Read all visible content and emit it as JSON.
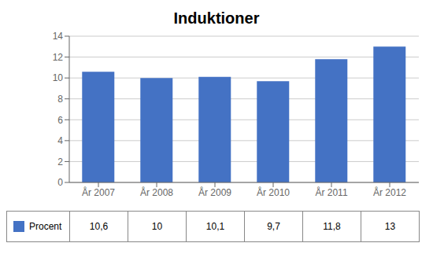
{
  "chart_data": {
    "type": "bar",
    "title": "Induktioner",
    "categories": [
      "År 2007",
      "År 2008",
      "År 2009",
      "År 2010",
      "År 2011",
      "År 2012"
    ],
    "series": [
      {
        "name": "Procent",
        "color": "#4472C4",
        "values": [
          10.6,
          10,
          10.1,
          9.7,
          11.8,
          13
        ],
        "value_labels": [
          "10,6",
          "10",
          "10,1",
          "9,7",
          "11,8",
          "13"
        ]
      }
    ],
    "ylim": [
      0,
      14
    ],
    "yticks": [
      0,
      2,
      4,
      6,
      8,
      10,
      12,
      14
    ],
    "grid": true,
    "legend": "bottom"
  }
}
